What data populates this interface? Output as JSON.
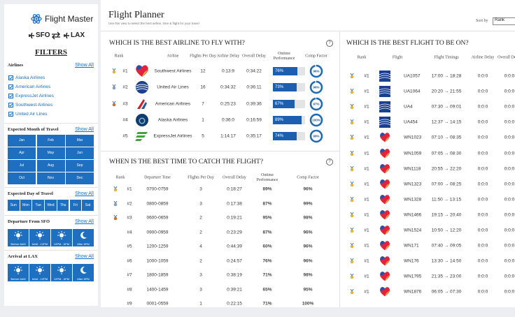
{
  "sidebar": {
    "app_name": "Flight Master",
    "origin": "SFO",
    "destination": "LAX",
    "filters_title": "FILTERS",
    "airlines": {
      "title": "Airlines",
      "show_all": "Show All",
      "items": [
        "Alaska Airlines",
        "American Airlines",
        "ExpressJet Airlines",
        "Southwest Airlines",
        "United Air Lines"
      ]
    },
    "months": {
      "title": "Expected Month of Travel",
      "show_all": "Show All",
      "items": [
        "Jan",
        "Feb",
        "Mar",
        "Apr",
        "May",
        "Jun",
        "Jul",
        "Aug",
        "Sep",
        "Oct",
        "Nov",
        "Dec"
      ]
    },
    "days": {
      "title": "Expected Day of Travel",
      "show_all": "Show All",
      "items": [
        "Sun",
        "Mon",
        "Tue",
        "Wed",
        "Thu",
        "Fri",
        "Sat"
      ]
    },
    "departure": {
      "title": "Departure From SFO",
      "show_all": "Show All",
      "items": [
        "Before 6AM",
        "6AM - 12PM",
        "12PM - 6PM",
        "After 6PM"
      ]
    },
    "arrival": {
      "title": "Arrival at LAX",
      "show_all": "Show All",
      "items": [
        "Before 6AM",
        "6AM - 12PM",
        "12PM - 6PM",
        "After 6PM"
      ]
    }
  },
  "header": {
    "title": "Flight Planner",
    "subtitle": "Use this view to select the best airline, time & flight for your travel",
    "sort_label": "Sort by",
    "sort_value": "Rank"
  },
  "airline_panel": {
    "title": "WHICH IS THE BEST AIRLINE TO FLY WITH?",
    "help": "?",
    "columns": [
      "Rank",
      "Airline",
      "Flights Per Day",
      "Airline Delay",
      "Overall Delay",
      "Ontime Performance",
      "Comp Factor"
    ],
    "rows": [
      {
        "rank": "#1",
        "airline": "Southwest Airlines",
        "flights": "12",
        "airline_delay": "0:13:9",
        "overall_delay": "0:34:22",
        "ontime": 76,
        "ontime_label": "76%",
        "comp": 96,
        "comp_label": "96%"
      },
      {
        "rank": "#2",
        "airline": "United Air Lines",
        "flights": "16",
        "airline_delay": "0:34:32",
        "overall_delay": "0:36:11",
        "ontime": 73,
        "ontime_label": "73%",
        "comp": 96,
        "comp_label": "96%"
      },
      {
        "rank": "#3",
        "airline": "American Airlines",
        "flights": "7",
        "airline_delay": "0:25:23",
        "overall_delay": "0:39:36",
        "ontime": 67,
        "ontime_label": "67%",
        "comp": 97,
        "comp_label": "97%"
      },
      {
        "rank": "#4",
        "airline": "Alaska Airlines",
        "flights": "1",
        "airline_delay": "0:36:0",
        "overall_delay": "0:16:59",
        "ontime": 89,
        "ontime_label": "89%",
        "comp": 100,
        "comp_label": "100%"
      },
      {
        "rank": "#5",
        "airline": "ExpressJet Airlines",
        "flights": "5",
        "airline_delay": "1:14:17",
        "overall_delay": "0:35:17",
        "ontime": 74,
        "ontime_label": "74%",
        "comp": 99,
        "comp_label": "99%"
      }
    ]
  },
  "time_panel": {
    "title": "WHEN IS THE BEST TIME TO CATCH THE FLIGHT?",
    "help": "?",
    "columns": [
      "Rank",
      "Departure Time",
      "Flights Per Day",
      "Overall Delay",
      "Ontime Performance",
      "Comp Factor"
    ],
    "rows": [
      [
        "#1",
        "0700-0759",
        "3",
        "0:18:27",
        "89%",
        "96%"
      ],
      [
        "#2",
        "0800-0859",
        "3",
        "0:17:38",
        "87%",
        "99%"
      ],
      [
        "#3",
        "0600-0659",
        "2",
        "0:19:21",
        "95%",
        "98%"
      ],
      [
        "#4",
        "0900-0959",
        "2",
        "0:23:29",
        "87%",
        "96%"
      ],
      [
        "#5",
        "1200-1259",
        "4",
        "0:44:39",
        "60%",
        "96%"
      ],
      [
        "#6",
        "1000-1059",
        "2",
        "0:24:57",
        "76%",
        "96%"
      ],
      [
        "#7",
        "1800-1859",
        "3",
        "0:38:19",
        "71%",
        "98%"
      ],
      [
        "#8",
        "1400-1459",
        "3",
        "0:39:21",
        "65%",
        "95%"
      ],
      [
        "#9",
        "0001-0559",
        "1",
        "0:22:15",
        "71%",
        "100%"
      ]
    ]
  },
  "flight_panel": {
    "title": "WHICH IS THE BEST FLIGHT TO BE ON?",
    "columns": [
      "Rank",
      "Flight",
      "Flight Timings",
      "Airline Delay",
      "Overall Delay"
    ],
    "rows": [
      [
        "#1",
        "UA1057",
        "17:00 → 18:28",
        "0:0:0",
        "0:0:0"
      ],
      [
        "#1",
        "UA1064",
        "20:20 → 21:55",
        "0:0:0",
        "0:0:0"
      ],
      [
        "#1",
        "UA4",
        "07:30 → 09:01",
        "0:0:0",
        "0:0:0"
      ],
      [
        "#1",
        "UA454",
        "12:37 → 14:15",
        "0:0:0",
        "0:0:0"
      ],
      [
        "#1",
        "WN1023",
        "07:10 → 08:35",
        "0:0:0",
        "0:0:0"
      ],
      [
        "#1",
        "WN1059",
        "07:05 → 08:30",
        "0:0:0",
        "0:0:0"
      ],
      [
        "#1",
        "WN1118",
        "20:55 → 22:20",
        "0:0:0",
        "0:0:0"
      ],
      [
        "#1",
        "WN1323",
        "07:00 → 08:25",
        "0:0:0",
        "0:0:0"
      ],
      [
        "#1",
        "WN1328",
        "11:50 → 13:15",
        "0:0:0",
        "0:0:0"
      ],
      [
        "#1",
        "WN1466",
        "19:15 → 20:40",
        "0:0:0",
        "0:0:0"
      ],
      [
        "#1",
        "WN1524",
        "10:50 → 12:20",
        "0:0:0",
        "0:0:0"
      ],
      [
        "#1",
        "WN171",
        "07:40 → 09:05",
        "0:0:0",
        "0:0:0"
      ],
      [
        "#1",
        "WN176",
        "13:30 → 14:50",
        "0:0:0",
        "0:0:0"
      ],
      [
        "#1",
        "WN1795",
        "21:35 → 23:00",
        "0:0:0",
        "0:0:0"
      ],
      [
        "#1",
        "WN1876",
        "06:05 → 07:30",
        "0:0:0",
        "0:0:0"
      ]
    ]
  }
}
